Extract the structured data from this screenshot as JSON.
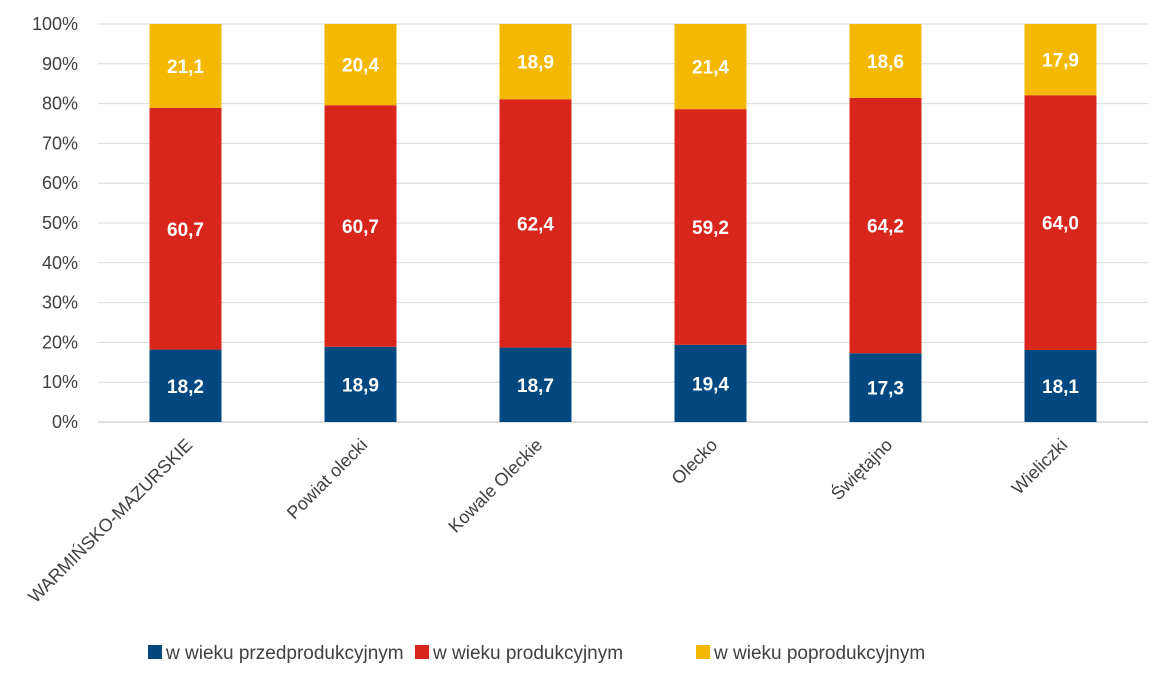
{
  "chart_data": {
    "type": "bar",
    "stacked": "percent",
    "categories": [
      "WARMIŃSKO-MAZURSKIE",
      "Powiat olecki",
      "Kowale Oleckie",
      "Olecko",
      "Świętajno",
      "Wieliczki"
    ],
    "series": [
      {
        "name": "w wieku przedprodukcyjnym",
        "values": [
          18.2,
          18.9,
          18.7,
          19.4,
          17.3,
          18.1
        ],
        "labels": [
          "18,2",
          "18,9",
          "18,7",
          "19,4",
          "17,3",
          "18,1"
        ],
        "color": "#00487f"
      },
      {
        "name": "w wieku produkcyjnym",
        "values": [
          60.7,
          60.7,
          62.4,
          59.2,
          64.2,
          64.0
        ],
        "labels": [
          "60,7",
          "60,7",
          "62,4",
          "59,2",
          "64,2",
          "64,0"
        ],
        "color": "#d9261c"
      },
      {
        "name": "w wieku poprodukcyjnym",
        "values": [
          21.1,
          20.4,
          18.9,
          21.4,
          18.6,
          17.9
        ],
        "labels": [
          "21,1",
          "20,4",
          "18,9",
          "21,4",
          "18,6",
          "17,9"
        ],
        "color": "#f5b800"
      }
    ],
    "yticks": [
      "0%",
      "10%",
      "20%",
      "30%",
      "40%",
      "50%",
      "60%",
      "70%",
      "80%",
      "90%",
      "100%"
    ],
    "ylim": [
      0,
      100
    ],
    "grid": true,
    "legend_position": "bottom"
  }
}
